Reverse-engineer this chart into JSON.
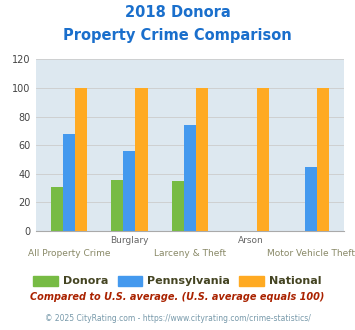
{
  "title_line1": "2018 Donora",
  "title_line2": "Property Crime Comparison",
  "title_color": "#1a6fcc",
  "groups_data": [
    {
      "donora": 31,
      "pennsylvania": 68,
      "national": 100
    },
    {
      "donora": 36,
      "pennsylvania": 56,
      "national": 100
    },
    {
      "donora": 35,
      "pennsylvania": 74,
      "national": 100
    },
    {
      "donora": 0,
      "pennsylvania": 0,
      "national": 100
    },
    {
      "donora": 0,
      "pennsylvania": 45,
      "national": 100
    }
  ],
  "top_labels": [
    "",
    "Burglary",
    "",
    "Arson",
    ""
  ],
  "bottom_labels": [
    "All Property Crime",
    "",
    "Larceny & Theft",
    "",
    "Motor Vehicle Theft"
  ],
  "bar_colors": {
    "donora": "#77bb44",
    "pennsylvania": "#4499ee",
    "national": "#ffaa22"
  },
  "ylim": [
    0,
    120
  ],
  "yticks": [
    0,
    20,
    40,
    60,
    80,
    100,
    120
  ],
  "grid_color": "#cccccc",
  "bg_color": "#dde8f0",
  "legend_labels": [
    "Donora",
    "Pennsylvania",
    "National"
  ],
  "footnote1": "Compared to U.S. average. (U.S. average equals 100)",
  "footnote2": "© 2025 CityRating.com - https://www.cityrating.com/crime-statistics/",
  "footnote1_color": "#aa2200",
  "footnote2_color": "#7799aa",
  "legend_text_color": "#555533"
}
